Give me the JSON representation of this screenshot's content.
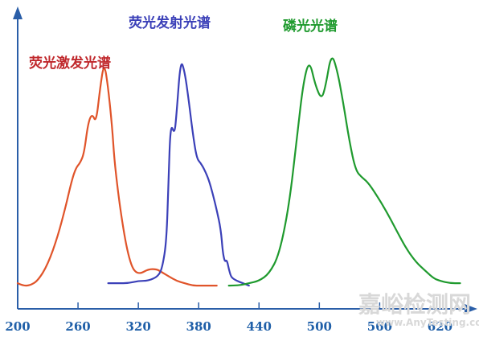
{
  "chart_data": {
    "type": "line",
    "title": "",
    "xlabel": "",
    "ylabel": "",
    "xlim": [
      200,
      650
    ],
    "ylim": [
      0,
      100
    ],
    "x_ticks": [
      {
        "value": 200,
        "label": "200"
      },
      {
        "value": 260,
        "label": "260"
      },
      {
        "value": 320,
        "label": "320"
      },
      {
        "value": 380,
        "label": "380"
      },
      {
        "value": 440,
        "label": "440"
      },
      {
        "value": 500,
        "label": "500"
      },
      {
        "value": 560,
        "label": "560"
      },
      {
        "value": 620,
        "label": "620"
      }
    ],
    "grid": false,
    "legend": "inline labels",
    "series": [
      {
        "name": "荧光激发光谱",
        "color": "#e0542a",
        "x": [
          200,
          205,
          212,
          220,
          230,
          240,
          248,
          254,
          258,
          262,
          266,
          270,
          274,
          278,
          282,
          286,
          290,
          294,
          296,
          300,
          304,
          308,
          312,
          316,
          322,
          330,
          338,
          342,
          350,
          358,
          366,
          374,
          382,
          390,
          398
        ],
        "y": [
          2,
          1,
          1,
          3,
          10,
          22,
          35,
          46,
          51,
          53,
          57,
          70,
          74,
          70,
          85,
          96,
          85,
          68,
          55,
          40,
          28,
          18,
          11,
          7,
          6,
          8,
          8,
          7,
          5,
          3,
          2,
          1,
          1,
          1,
          1
        ]
      },
      {
        "name": "荧光发射光谱",
        "color": "#3b40b8",
        "x": [
          290,
          300,
          310,
          320,
          330,
          340,
          344,
          348,
          350,
          352,
          356,
          358,
          362,
          366,
          370,
          374,
          378,
          382,
          386,
          390,
          394,
          398,
          402,
          404,
          406,
          408,
          410,
          412,
          414,
          418,
          424,
          430
        ],
        "y": [
          2,
          2,
          2,
          3,
          3,
          5,
          9,
          20,
          45,
          70,
          65,
          74,
          97,
          92,
          80,
          66,
          55,
          53,
          50,
          46,
          40,
          33,
          25,
          15,
          11,
          12,
          8,
          5,
          4,
          3,
          2,
          1
        ]
      },
      {
        "name": "磷光光谱",
        "color": "#1f9a2e",
        "x": [
          410,
          420,
          430,
          440,
          450,
          460,
          470,
          478,
          484,
          490,
          496,
          502,
          506,
          512,
          518,
          524,
          530,
          536,
          542,
          548,
          556,
          566,
          576,
          586,
          596,
          606,
          614,
          620,
          630,
          640
        ],
        "y": [
          1,
          1,
          2,
          3,
          6,
          14,
          35,
          65,
          87,
          97,
          86,
          80,
          85,
          100,
          92,
          78,
          62,
          50,
          47,
          45,
          40,
          33,
          25,
          17,
          11,
          7,
          4,
          3,
          2,
          2
        ]
      }
    ],
    "annotations": [
      {
        "text": "荧光激发光谱",
        "color": "#c0282c",
        "series": 0
      },
      {
        "text": "荧光发射光谱",
        "color": "#3b40b8",
        "series": 1
      },
      {
        "text": "磷光光谱",
        "color": "#1f9a2e",
        "series": 2
      }
    ]
  },
  "watermark": {
    "cn": "嘉峪检测网",
    "en": "www.AnyTesting.com"
  }
}
